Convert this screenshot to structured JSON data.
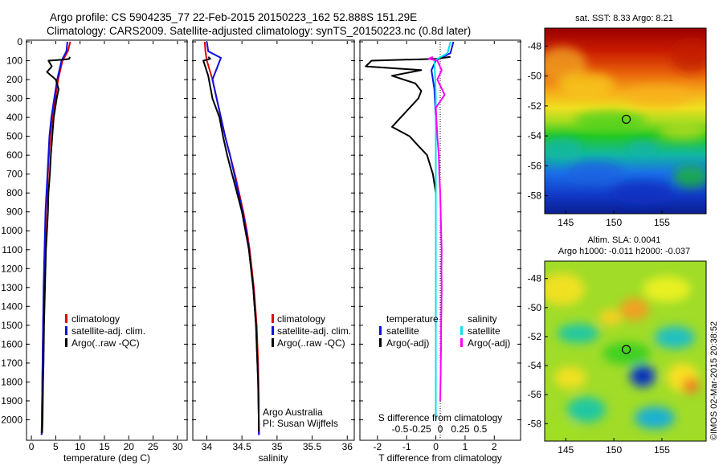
{
  "title": {
    "line1": "Argo profile: CS 5904235_77 22-Feb-2015 20150223_162 52.888S 151.29E",
    "line2": "Climatology: CARS2009. Satellite-adjusted climatology: synTS_20150223.nc (0.8d later)"
  },
  "colors": {
    "climatology": "#e00000",
    "satellite": "#1010e0",
    "argo": "#000000",
    "sal_satellite": "#00e5ee",
    "sal_argo": "#ff00ff"
  },
  "chart_data": [
    {
      "type": "line",
      "id": "temperature",
      "xlabel": "temperature (deg C)",
      "ylabel": "",
      "xlim": [
        -1,
        32
      ],
      "ylim": [
        2100,
        0
      ],
      "x_ticks": [
        0,
        5,
        10,
        15,
        20,
        25,
        30
      ],
      "y_ticks": [
        0,
        100,
        200,
        300,
        400,
        500,
        600,
        700,
        800,
        900,
        1000,
        1100,
        1200,
        1300,
        1400,
        1500,
        1600,
        1700,
        1800,
        1900,
        2000
      ],
      "y_tick_labels": [
        "0",
        "100",
        "200",
        "300",
        "400",
        "500",
        "600",
        "700",
        "800",
        "900",
        "1000",
        "1100",
        "1200",
        "1300",
        "1400",
        "1500",
        "1600",
        "1700",
        "1800",
        "1900",
        "2000"
      ],
      "legend": [
        "climatology",
        "satellite-adj. clim.",
        "Argo(..raw -QC)"
      ],
      "series": [
        {
          "name": "climatology",
          "color": "#e00000",
          "x": [
            8.0,
            7.5,
            6.4,
            5.5,
            4.9,
            4.3,
            3.9,
            3.6,
            3.4,
            3.2,
            3.0,
            2.9,
            2.8,
            2.7,
            2.6,
            2.5,
            2.4,
            2.35,
            2.3,
            2.25,
            2.2,
            2.15,
            2.1
          ],
          "y": [
            0,
            50,
            100,
            200,
            300,
            400,
            500,
            600,
            700,
            800,
            900,
            1000,
            1100,
            1200,
            1300,
            1400,
            1500,
            1600,
            1700,
            1800,
            1900,
            2000,
            2080
          ]
        },
        {
          "name": "satellite-adj. clim.",
          "color": "#1010e0",
          "x": [
            7.4,
            7.2,
            6.2,
            5.3,
            4.7,
            4.1,
            3.7,
            3.5,
            3.3,
            3.1,
            2.9,
            2.8,
            2.7,
            2.6,
            2.5,
            2.45,
            2.4,
            2.35,
            2.3,
            2.25,
            2.2,
            2.15,
            2.1
          ],
          "y": [
            0,
            50,
            100,
            200,
            300,
            400,
            500,
            600,
            700,
            800,
            900,
            1000,
            1100,
            1200,
            1300,
            1400,
            1500,
            1600,
            1700,
            1800,
            1900,
            2000,
            2080
          ]
        },
        {
          "name": "Argo(..raw -QC)",
          "color": "#000000",
          "x": [
            7.9,
            7.8,
            6.5,
            3.5,
            4.2,
            3.2,
            5.0,
            5.6,
            5.2,
            4.6,
            4.3,
            4.0,
            3.8,
            3.5,
            3.4,
            3.2,
            3.0,
            2.9,
            2.8,
            2.7,
            2.6,
            2.55,
            2.5,
            2.4,
            2.35,
            2.3,
            2.25,
            2.2
          ],
          "y": [
            80,
            90,
            95,
            100,
            130,
            160,
            200,
            250,
            300,
            400,
            500,
            600,
            700,
            800,
            900,
            1000,
            1100,
            1200,
            1300,
            1400,
            1500,
            1600,
            1700,
            1800,
            1900,
            2000,
            2040,
            2070
          ]
        }
      ]
    },
    {
      "type": "line",
      "id": "salinity",
      "xlabel": "salinity",
      "xlim": [
        33.8,
        36.1
      ],
      "ylim": [
        2100,
        0
      ],
      "x_ticks": [
        34,
        34.5,
        35,
        35.5,
        36
      ],
      "x_tick_labels": [
        "34",
        "34.5",
        "35",
        "35.5",
        "36"
      ],
      "legend": [
        "climatology",
        "satellite-adj. clim.",
        "Argo(..raw -QC)"
      ],
      "annotation": [
        "Argo Australia",
        "PI: Susan Wijffels"
      ],
      "series": [
        {
          "name": "climatology",
          "color": "#e00000",
          "x": [
            33.97,
            33.98,
            34.0,
            34.08,
            34.14,
            34.2,
            34.26,
            34.33,
            34.4,
            34.46,
            34.52,
            34.57,
            34.61,
            34.64,
            34.67,
            34.69,
            34.71,
            34.72,
            34.73,
            34.735,
            34.74,
            34.74,
            34.745
          ],
          "y": [
            0,
            50,
            100,
            200,
            300,
            400,
            500,
            600,
            700,
            800,
            900,
            1000,
            1100,
            1200,
            1300,
            1400,
            1500,
            1600,
            1700,
            1800,
            1900,
            2000,
            2080
          ]
        },
        {
          "name": "satellite-adj. clim.",
          "color": "#1010e0",
          "x": [
            34.0,
            34.02,
            34.2,
            34.08,
            34.14,
            34.2,
            34.26,
            34.33,
            34.39,
            34.45,
            34.51,
            34.56,
            34.6,
            34.63,
            34.66,
            34.68,
            34.7,
            34.71,
            34.72,
            34.73,
            34.735,
            34.74,
            34.74
          ],
          "y": [
            0,
            50,
            85,
            200,
            300,
            400,
            500,
            600,
            700,
            800,
            900,
            1000,
            1100,
            1200,
            1300,
            1400,
            1500,
            1600,
            1700,
            1800,
            1900,
            2000,
            2080
          ]
        },
        {
          "name": "Argo(..raw -QC)",
          "color": "#000000",
          "x": [
            34.02,
            34.05,
            33.95,
            34.02,
            34.08,
            34.18,
            34.23,
            34.29,
            34.36,
            34.43,
            34.5,
            34.55,
            34.6,
            34.63,
            34.66,
            34.68,
            34.7,
            34.71,
            34.72,
            34.73,
            34.735,
            34.74,
            34.74
          ],
          "y": [
            80,
            90,
            100,
            180,
            300,
            400,
            500,
            600,
            700,
            800,
            900,
            1000,
            1100,
            1200,
            1300,
            1400,
            1500,
            1600,
            1700,
            1800,
            1900,
            2000,
            2060
          ]
        }
      ]
    },
    {
      "type": "line",
      "id": "difference",
      "xlabel": "T difference from climatology",
      "top_label": "S difference from climatology",
      "xlim": [
        -2.6,
        2.9
      ],
      "ylim": [
        2100,
        0
      ],
      "x_ticks": [
        -2,
        -1,
        0,
        1,
        2
      ],
      "x_tick_labels": [
        "-2",
        "-1",
        "0",
        "1",
        "2"
      ],
      "s_ticks": [
        -0.5,
        -0.25,
        0,
        0.25,
        0.5
      ],
      "s_tick_labels": [
        "-0.5",
        "-0.25",
        "0",
        "0.25",
        "0.5"
      ],
      "legend": {
        "temperature_header": "temperature",
        "salinity_header": "salinity",
        "t_satellite": "satellite",
        "t_argo": "Argo(-adj)",
        "s_satellite": "satellite",
        "s_argo": "Argo(-adj)"
      },
      "series": [
        {
          "name": "temperature satellite",
          "color": "#1010e0",
          "x": [
            0.6,
            0.5,
            0.0,
            -0.15,
            -0.05,
            0.0,
            0.0,
            0.0,
            0.0,
            0.0,
            0.0,
            0.0,
            0.0,
            0.0
          ],
          "y": [
            0,
            60,
            100,
            150,
            250,
            400,
            600,
            800,
            1000,
            1200,
            1400,
            1600,
            1800,
            2000
          ]
        },
        {
          "name": "temperature Argo(-adj)",
          "color": "#000000",
          "x": [
            0.5,
            0.0,
            -2.2,
            -2.4,
            -0.5,
            -1.5,
            -0.7,
            -0.5,
            -0.6,
            -1.2,
            -1.5,
            -0.9,
            -0.6,
            -0.3,
            -0.1,
            0.0,
            0.0,
            0.0,
            0.0,
            0.0,
            0.0,
            0.0
          ],
          "y": [
            80,
            90,
            100,
            130,
            150,
            180,
            220,
            260,
            300,
            400,
            450,
            500,
            550,
            600,
            700,
            800,
            1000,
            1200,
            1400,
            1600,
            1800,
            2000
          ]
        },
        {
          "name": "salinity satellite",
          "color": "#00e5ee",
          "x": [
            0.5,
            0.4,
            -0.05,
            -0.02,
            0.0,
            0.0,
            0.0,
            0.0,
            0.0,
            0.0,
            0.0,
            0.0,
            0.0,
            0.0
          ],
          "y": [
            0,
            60,
            100,
            200,
            300,
            500,
            700,
            900,
            1100,
            1300,
            1500,
            1700,
            1900,
            2000
          ]
        },
        {
          "name": "salinity Argo(-adj)",
          "color": "#ff00ff",
          "x": [
            -0.1,
            -0.25,
            0.05,
            0.2,
            0.05,
            0.3,
            0.0,
            0.05,
            0.1,
            0.12,
            0.15,
            0.18,
            0.2,
            0.19,
            0.2,
            0.19,
            0.18,
            0.18,
            0.17,
            0.16,
            0.15
          ],
          "y": [
            80,
            90,
            100,
            150,
            200,
            280,
            350,
            500,
            600,
            700,
            800,
            1000,
            1100,
            1200,
            1300,
            1400,
            1500,
            1600,
            1700,
            1800,
            1900
          ]
        }
      ]
    },
    {
      "type": "heatmap",
      "id": "sst_map",
      "title": "sat. SST: 8.33 Argo: 8.21",
      "x_ticks": [
        145,
        150,
        155
      ],
      "y_ticks": [
        -48,
        -50,
        -52,
        -54,
        -56,
        -58
      ],
      "xlim": [
        142.8,
        159.6
      ],
      "ylim": [
        -59.2,
        -46.8
      ],
      "marker": {
        "lon": 151.29,
        "lat": -52.888
      }
    },
    {
      "type": "heatmap",
      "id": "sla_map",
      "title": "Altim. SLA: 0.0041",
      "subtitle": "Argo h1000: -0.011 h2000: -0.037",
      "x_ticks": [
        145,
        150,
        155
      ],
      "y_ticks": [
        -48,
        -50,
        -52,
        -54,
        -56,
        -58
      ],
      "xlim": [
        142.8,
        159.6
      ],
      "ylim": [
        -59.2,
        -46.8
      ],
      "marker": {
        "lon": 151.29,
        "lat": -52.888
      }
    }
  ],
  "credit": "©IMOS 02-Mar-2015 20:38:52"
}
